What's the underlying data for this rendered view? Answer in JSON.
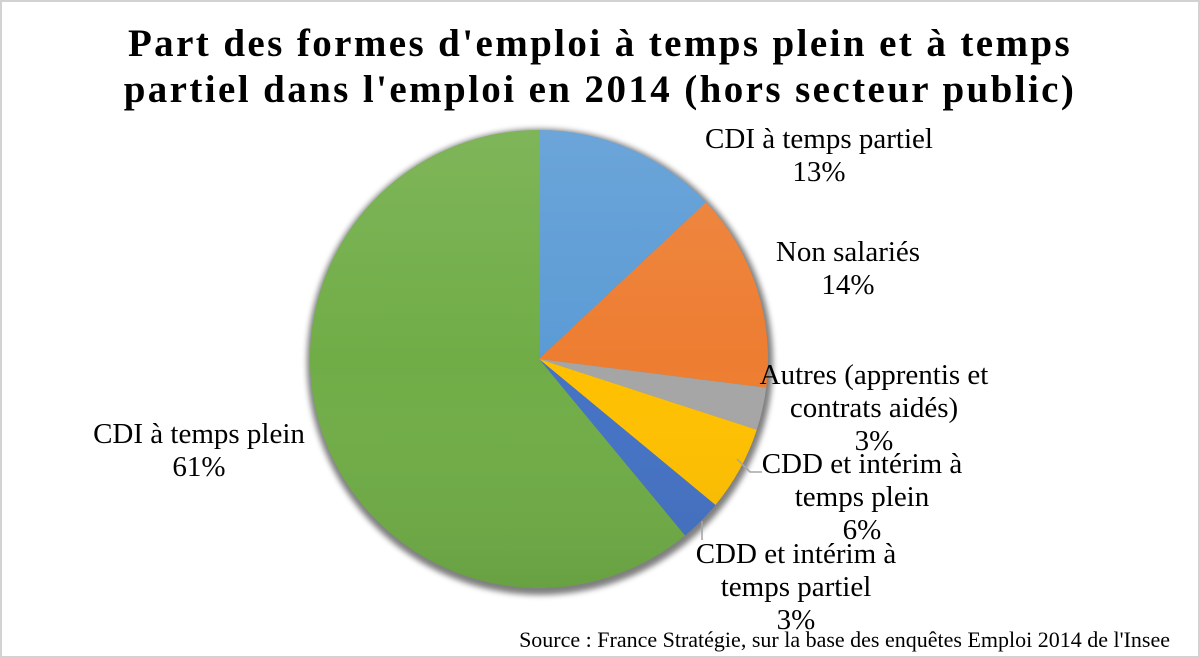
{
  "chart_data": {
    "type": "pie",
    "title_lines": [
      "Part des formes d'emploi à temps plein et à temps",
      "partiel dans l'emploi en 2014 (hors secteur public)"
    ],
    "start_angle_deg": 0,
    "direction": "clockwise",
    "slices": [
      {
        "label": "CDI à temps partiel",
        "value_pct": 13,
        "pct_label": "13%",
        "color": "#5B9BD5"
      },
      {
        "label": "Non salariés",
        "value_pct": 14,
        "pct_label": "14%",
        "color": "#ED7D31"
      },
      {
        "label": "Autres (apprentis et contrats aidés)",
        "value_pct": 3,
        "pct_label": "3%",
        "color": "#A5A5A5"
      },
      {
        "label": "CDD et intérim à temps plein",
        "value_pct": 6,
        "pct_label": "6%",
        "color": "#FFC000"
      },
      {
        "label": "CDD et intérim à temps partiel",
        "value_pct": 3,
        "pct_label": "3%",
        "color": "#4472C4"
      },
      {
        "label": "CDI à temps plein",
        "value_pct": 61,
        "pct_label": "61%",
        "color": "#70AD47"
      }
    ],
    "source": "Source : France Stratégie, sur la base des enquêtes Emploi 2014 de l'Insee",
    "leader_line_color": "#A6A6A6"
  }
}
